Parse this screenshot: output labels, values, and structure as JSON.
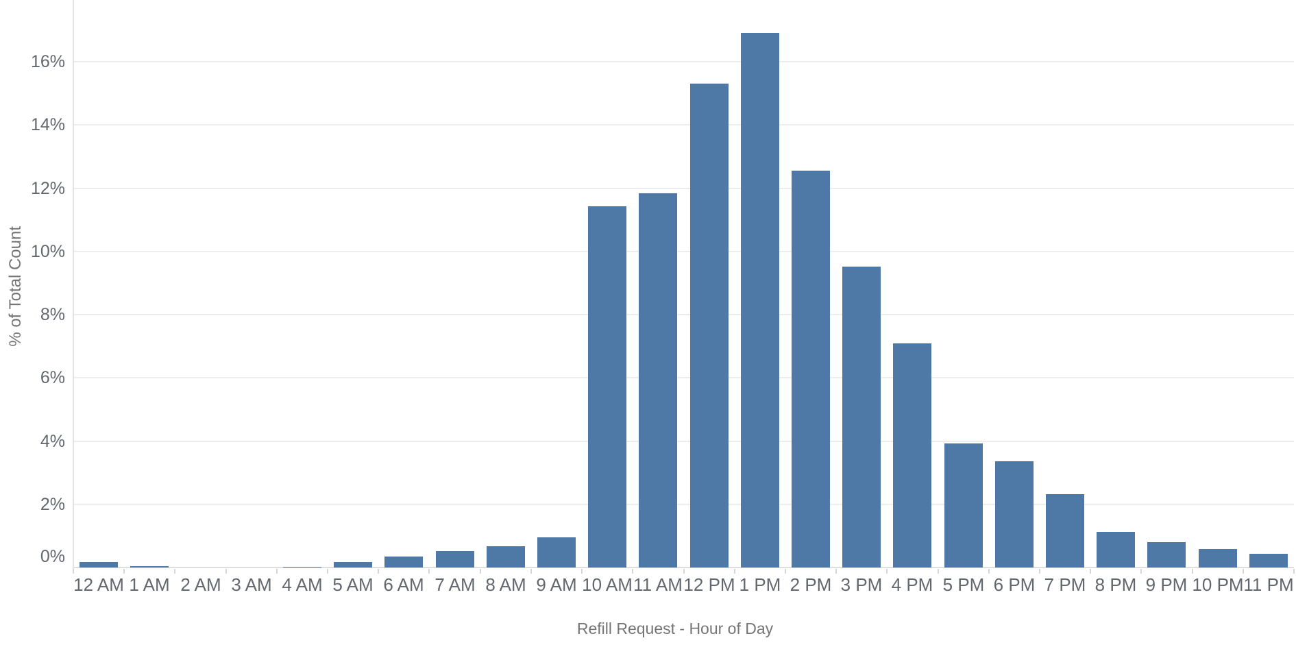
{
  "chart_data": {
    "type": "bar",
    "title": "",
    "xlabel": "Refill Request - Hour of Day",
    "ylabel": "% of Total Count",
    "categories": [
      "12 AM",
      "1 AM",
      "2 AM",
      "3 AM",
      "4 AM",
      "5 AM",
      "6 AM",
      "7 AM",
      "8 AM",
      "9 AM",
      "10 AM",
      "11 AM",
      "12 PM",
      "1 PM",
      "2 PM",
      "3 PM",
      "4 PM",
      "5 PM",
      "6 PM",
      "7 PM",
      "8 PM",
      "9 PM",
      "10 PM",
      "11 PM"
    ],
    "values": [
      0.17,
      0.04,
      0,
      0,
      0.03,
      0.17,
      0.34,
      0.53,
      0.67,
      0.95,
      11.43,
      11.83,
      15.3,
      16.92,
      12.56,
      9.52,
      7.1,
      3.92,
      3.35,
      2.32,
      1.12,
      0.8,
      0.59,
      0.44
    ],
    "ylim": [
      0,
      17.95
    ],
    "yticks": [
      0,
      2,
      4,
      6,
      8,
      10,
      12,
      14,
      16
    ],
    "ytick_labels": [
      "0%",
      "2%",
      "4%",
      "6%",
      "8%",
      "10%",
      "12%",
      "14%",
      "16%"
    ],
    "grid": "horizontal",
    "legend_position": "none",
    "colors": {
      "bar": "#4e79a7",
      "gridline": "#ededed",
      "baseline": "#dedede",
      "axis_line": "#e2e2e2",
      "tick_mark": "#d6d6d6",
      "tick_label": "#63686e",
      "axis_title": "#757575",
      "background": "#ffffff"
    }
  }
}
